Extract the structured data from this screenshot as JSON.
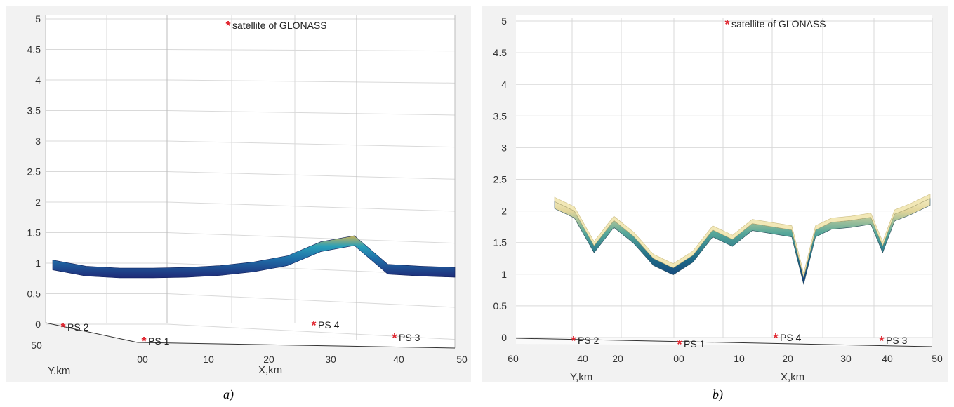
{
  "chart_data": [
    {
      "type": "surface",
      "panel_label": "a)",
      "zlim": [
        0,
        5
      ],
      "z_ticks": [
        "0",
        "0.5",
        "1",
        "1.5",
        "2",
        "2.5",
        "3",
        "3.5",
        "4",
        "4.5",
        "5"
      ],
      "x_label": "X,km",
      "x_ticks": [
        "00",
        "10",
        "20",
        "30",
        "40",
        "50"
      ],
      "y_label": "Y,km",
      "y_ticks": [
        "50"
      ],
      "grid": true,
      "colormap": "parula",
      "annotations": [
        {
          "name": "satellite",
          "text": "satellite of GLONASS",
          "color": "#e0202a"
        },
        {
          "name": "ps1",
          "text": "PS 1",
          "color": "#e0202a"
        },
        {
          "name": "ps2",
          "text": "PS 2",
          "color": "#e0202a"
        },
        {
          "name": "ps3",
          "text": "PS 3",
          "color": "#e0202a"
        },
        {
          "name": "ps4",
          "text": "PS 4",
          "color": "#e0202a"
        }
      ],
      "surface_profile": {
        "x": [
          -10,
          -5,
          0,
          5,
          10,
          15,
          20,
          25,
          30,
          35,
          40,
          45,
          50
        ],
        "z": [
          1.05,
          0.95,
          0.92,
          0.92,
          0.93,
          0.96,
          1.02,
          1.12,
          1.35,
          1.45,
          0.98,
          0.95,
          0.93
        ]
      }
    },
    {
      "type": "surface",
      "panel_label": "b)",
      "zlim": [
        0,
        5
      ],
      "z_ticks": [
        "0",
        "0.5",
        "1",
        "1.5",
        "2",
        "2.5",
        "3",
        "3.5",
        "4",
        "4.5",
        "5"
      ],
      "x_label": "X,km",
      "x_ticks": [
        "00",
        "10",
        "20",
        "30",
        "40",
        "50"
      ],
      "y_label": "Y,km",
      "y_ticks": [
        "60",
        "40",
        "20"
      ],
      "grid": true,
      "colormap": "parula",
      "annotations": [
        {
          "name": "satellite",
          "text": "satellite of GLONASS",
          "color": "#e0202a"
        },
        {
          "name": "ps1",
          "text": "PS 1",
          "color": "#e0202a"
        },
        {
          "name": "ps2",
          "text": "PS 2",
          "color": "#e0202a"
        },
        {
          "name": "ps3",
          "text": "PS 3",
          "color": "#e0202a"
        },
        {
          "name": "ps4",
          "text": "PS 4",
          "color": "#e0202a"
        }
      ],
      "surface_profile": {
        "x": [
          -45,
          -40,
          -35,
          -30,
          -25,
          -20,
          -15,
          -10,
          -5,
          0,
          5,
          10,
          15,
          18,
          21,
          25,
          30,
          35,
          38,
          41,
          45,
          50
        ],
        "z": [
          2.15,
          2.0,
          1.45,
          1.85,
          1.6,
          1.25,
          1.1,
          1.3,
          1.7,
          1.55,
          1.8,
          1.75,
          1.7,
          0.95,
          1.7,
          1.82,
          1.85,
          1.9,
          1.45,
          1.95,
          2.05,
          2.2
        ]
      }
    }
  ]
}
